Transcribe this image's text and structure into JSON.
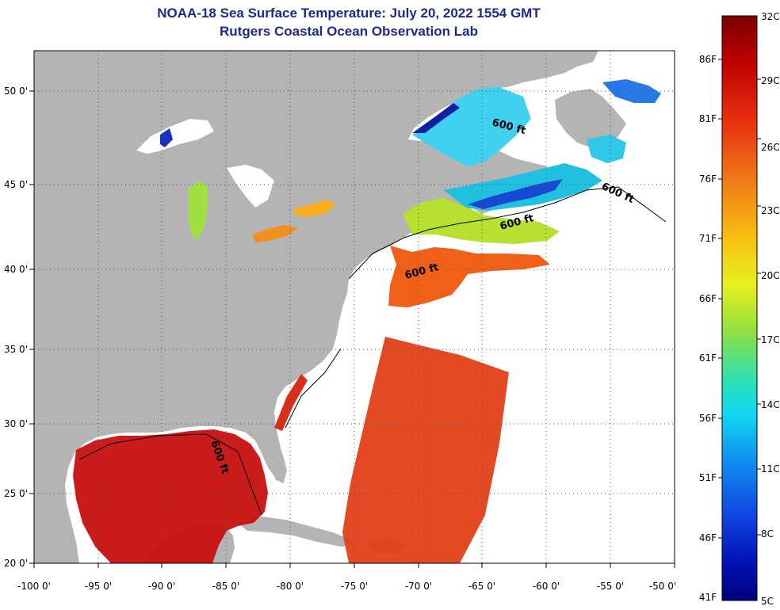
{
  "title": {
    "line1": "NOAA-18 Sea Surface Temperature:  July 20, 2022 1554 GMT",
    "line2": "Rutgers Coastal Ocean Observation Lab"
  },
  "axes": {
    "lon_labels": [
      "-100 0'",
      "-95 0'",
      "-90 0'",
      "-85 0'",
      "-80 0'",
      "-75 0'",
      "-70 0'",
      "-65 0'",
      "-60 0'",
      "-55 0'",
      "-50 0'"
    ],
    "lat_labels": [
      "20 0'",
      "25 0'",
      "30 0'",
      "35 0'",
      "40 0'",
      "45 0'",
      "50 0'"
    ]
  },
  "contour_label": "600 ft",
  "colorbar": {
    "celsius_labels": [
      "32C",
      "29C",
      "26C",
      "23C",
      "20C",
      "17C",
      "14C",
      "11C",
      "8C",
      "5C"
    ],
    "fahrenheit_labels": [
      "86F",
      "81F",
      "76F",
      "71F",
      "66F",
      "61F",
      "56F",
      "51F",
      "46F",
      "41F"
    ],
    "colors": [
      "#7a0000",
      "#c00000",
      "#e83010",
      "#f07818",
      "#f8c010",
      "#e8f020",
      "#90e040",
      "#30e0b0",
      "#10d8f0",
      "#1090f0",
      "#1040e0",
      "#0010b0",
      "#00007a"
    ]
  },
  "colors": {
    "land": "#b4b4b4",
    "ocean_nodata": "#ffffff",
    "title": "#1c2a8c"
  }
}
